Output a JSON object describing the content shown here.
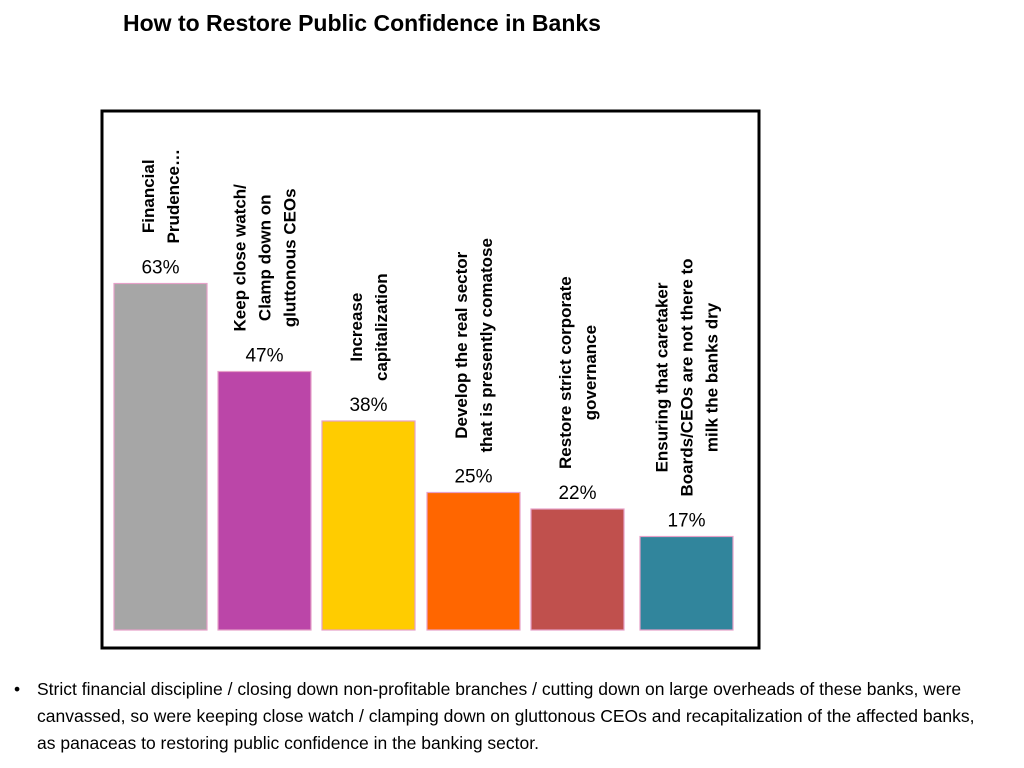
{
  "title": "How to Restore Public Confidence in Banks",
  "chart_data": {
    "type": "bar",
    "categories": [
      [
        "Financial",
        "Prudence…"
      ],
      [
        "Keep close watch/",
        "Clamp down on",
        "gluttonous CEOs"
      ],
      [
        "Increase",
        "capitalization"
      ],
      [
        "Develop the real sector",
        "that is presently comatose"
      ],
      [
        "Restore strict corporate",
        "governance"
      ],
      [
        "Ensuring that caretaker",
        "Boards/CEOs are not there to",
        "milk the banks dry"
      ]
    ],
    "values": [
      63,
      47,
      38,
      25,
      22,
      17
    ],
    "value_labels": [
      "63%",
      "47%",
      "38%",
      "25%",
      "22%",
      "17%"
    ],
    "colors": [
      "#a6a6a6",
      "#bb46a8",
      "#ffcc00",
      "#ff6600",
      "#c0504d",
      "#31859c"
    ],
    "ylim": [
      0,
      100
    ],
    "grid": false,
    "legend": "none"
  },
  "footer": {
    "bullet": "•",
    "text": "Strict financial discipline / closing down non-profitable branches / cutting down on large overheads of these banks, were canvassed, so were keeping close watch / clamping down on gluttonous CEOs and recapitalization of the affected banks, as panaceas to restoring public confidence in the banking sector."
  }
}
